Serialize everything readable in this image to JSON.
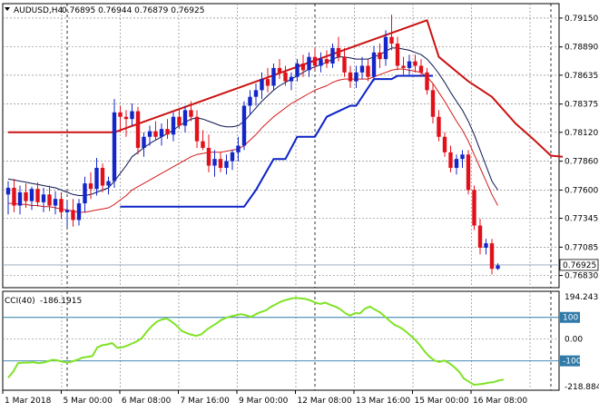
{
  "header": {
    "symbol": "AUDUSD,H4",
    "ohlc": "0.76895 0.76944 0.76879 0.76925"
  },
  "colors": {
    "bull": "#1426c8",
    "bear": "#e0111b",
    "ma_fast": "#0a1450",
    "ma_slow": "#d41a1a",
    "support": "#0a21c8",
    "resistance": "#cc1111",
    "cci": "#7fe324",
    "level": "#2f7aa8",
    "grid": "#8a8a8a"
  },
  "chart_data": [
    {
      "type": "candlestick",
      "title": "AUDUSD,H4",
      "ylim": [
        0.7672,
        0.7928
      ],
      "y_ticks": [
        "0.79150",
        "0.78890",
        "0.78635",
        "0.78375",
        "0.78120",
        "0.77860",
        "0.77600",
        "0.77345",
        "0.77085",
        "0.76830"
      ],
      "y_tick_values": [
        0.7915,
        0.7889,
        0.78635,
        0.78375,
        0.7812,
        0.7786,
        0.776,
        0.77345,
        0.77085,
        0.7683
      ],
      "current_price": "0.76925",
      "current_price_value": 0.76925,
      "x_labels": [
        "1 Mar 2018",
        "5 Mar 00:00",
        "6 Mar 08:00",
        "7 Mar 16:00",
        "9 Mar 00:00",
        "12 Mar 08:00",
        "13 Mar 16:00",
        "15 Mar 00:00",
        "16 Mar 08:00"
      ],
      "x_label_index": [
        0,
        10,
        21,
        32,
        43,
        54,
        65,
        76,
        87
      ],
      "separator_index": [
        10,
        52,
        92
      ],
      "candles": [
        [
          0.7756,
          0.7768,
          0.7738,
          0.7762
        ],
        [
          0.7762,
          0.777,
          0.774,
          0.7746
        ],
        [
          0.7746,
          0.7764,
          0.7738,
          0.7758
        ],
        [
          0.7758,
          0.7766,
          0.7744,
          0.775
        ],
        [
          0.775,
          0.7763,
          0.7742,
          0.7761
        ],
        [
          0.7761,
          0.7767,
          0.7745,
          0.7749
        ],
        [
          0.7749,
          0.7762,
          0.774,
          0.7756
        ],
        [
          0.7756,
          0.7764,
          0.7741,
          0.7746
        ],
        [
          0.7746,
          0.7759,
          0.7738,
          0.7752
        ],
        [
          0.7752,
          0.7758,
          0.7734,
          0.774
        ],
        [
          0.774,
          0.775,
          0.7726,
          0.7742
        ],
        [
          0.7742,
          0.7752,
          0.7727,
          0.7733
        ],
        [
          0.7733,
          0.7752,
          0.7728,
          0.7748
        ],
        [
          0.7748,
          0.7772,
          0.774,
          0.7766
        ],
        [
          0.7766,
          0.7776,
          0.7752,
          0.7761
        ],
        [
          0.7761,
          0.7789,
          0.7755,
          0.778
        ],
        [
          0.778,
          0.7784,
          0.7758,
          0.7764
        ],
        [
          0.7764,
          0.7772,
          0.7756,
          0.7768
        ],
        [
          0.7768,
          0.7842,
          0.7762,
          0.783
        ],
        [
          0.783,
          0.7836,
          0.7812,
          0.7826
        ],
        [
          0.7826,
          0.7832,
          0.7808,
          0.7824
        ],
        [
          0.7824,
          0.7838,
          0.7818,
          0.7831
        ],
        [
          0.7831,
          0.7835,
          0.7792,
          0.7798
        ],
        [
          0.7798,
          0.7812,
          0.779,
          0.7808
        ],
        [
          0.7808,
          0.7818,
          0.78,
          0.7813
        ],
        [
          0.7813,
          0.7822,
          0.7805,
          0.7808
        ],
        [
          0.7808,
          0.782,
          0.78,
          0.7815
        ],
        [
          0.7815,
          0.7824,
          0.7806,
          0.781
        ],
        [
          0.781,
          0.783,
          0.7804,
          0.7826
        ],
        [
          0.7826,
          0.7834,
          0.7815,
          0.7818
        ],
        [
          0.7818,
          0.7836,
          0.7812,
          0.7832
        ],
        [
          0.7832,
          0.784,
          0.7822,
          0.7826
        ],
        [
          0.7826,
          0.7832,
          0.7798,
          0.7804
        ],
        [
          0.7804,
          0.7814,
          0.7796,
          0.7798
        ],
        [
          0.7798,
          0.781,
          0.7776,
          0.7782
        ],
        [
          0.7782,
          0.7796,
          0.7772,
          0.7788
        ],
        [
          0.7788,
          0.7794,
          0.7776,
          0.778
        ],
        [
          0.778,
          0.7792,
          0.7774,
          0.7786
        ],
        [
          0.7786,
          0.7796,
          0.7778,
          0.7794
        ],
        [
          0.7794,
          0.7808,
          0.7786,
          0.78
        ],
        [
          0.78,
          0.784,
          0.7796,
          0.7836
        ],
        [
          0.7836,
          0.785,
          0.7828,
          0.7844
        ],
        [
          0.7844,
          0.7856,
          0.7836,
          0.785
        ],
        [
          0.785,
          0.7866,
          0.7842,
          0.786
        ],
        [
          0.786,
          0.787,
          0.7848,
          0.7854
        ],
        [
          0.7854,
          0.7874,
          0.785,
          0.787
        ],
        [
          0.787,
          0.7878,
          0.786,
          0.7866
        ],
        [
          0.7866,
          0.7872,
          0.7854,
          0.7858
        ],
        [
          0.7858,
          0.7866,
          0.785,
          0.7862
        ],
        [
          0.7862,
          0.7878,
          0.7858,
          0.7874
        ],
        [
          0.7874,
          0.7882,
          0.7862,
          0.7868
        ],
        [
          0.7868,
          0.7884,
          0.7862,
          0.788
        ],
        [
          0.788,
          0.7888,
          0.7868,
          0.7872
        ],
        [
          0.7872,
          0.7884,
          0.7866,
          0.7878
        ],
        [
          0.7878,
          0.7886,
          0.787,
          0.7874
        ],
        [
          0.7874,
          0.7892,
          0.787,
          0.7888
        ],
        [
          0.7888,
          0.7898,
          0.7876,
          0.788
        ],
        [
          0.788,
          0.7888,
          0.7862,
          0.7866
        ],
        [
          0.7866,
          0.7872,
          0.7852,
          0.7858
        ],
        [
          0.7858,
          0.7872,
          0.7852,
          0.7866
        ],
        [
          0.7866,
          0.788,
          0.786,
          0.7872
        ],
        [
          0.7872,
          0.7878,
          0.7858,
          0.7862
        ],
        [
          0.7862,
          0.789,
          0.7858,
          0.7884
        ],
        [
          0.7884,
          0.7892,
          0.787,
          0.7878
        ],
        [
          0.7878,
          0.7904,
          0.7872,
          0.7898
        ],
        [
          0.7898,
          0.7918,
          0.7886,
          0.7892
        ],
        [
          0.7892,
          0.7898,
          0.7868,
          0.7872
        ],
        [
          0.7872,
          0.788,
          0.7862,
          0.787
        ],
        [
          0.787,
          0.7882,
          0.7864,
          0.7876
        ],
        [
          0.7876,
          0.7882,
          0.7866,
          0.7872
        ],
        [
          0.7872,
          0.7878,
          0.7862,
          0.7866
        ],
        [
          0.7866,
          0.787,
          0.7846,
          0.785
        ],
        [
          0.785,
          0.7856,
          0.782,
          0.7826
        ],
        [
          0.7826,
          0.7832,
          0.7804,
          0.7808
        ],
        [
          0.7808,
          0.7812,
          0.779,
          0.7794
        ],
        [
          0.7794,
          0.78,
          0.7776,
          0.778
        ],
        [
          0.778,
          0.7792,
          0.7774,
          0.7788
        ],
        [
          0.7788,
          0.7796,
          0.778,
          0.7792
        ],
        [
          0.7792,
          0.7796,
          0.7756,
          0.776
        ],
        [
          0.776,
          0.7764,
          0.7724,
          0.7728
        ],
        [
          0.7728,
          0.7734,
          0.7702,
          0.7708
        ],
        [
          0.7708,
          0.7716,
          0.7702,
          0.7712
        ],
        [
          0.7712,
          0.7716,
          0.7684,
          0.7689
        ],
        [
          0.7689,
          0.7694,
          0.7688,
          0.7692
        ]
      ],
      "ma_fast": [
        0.777,
        0.7769,
        0.7768,
        0.7767,
        0.7766,
        0.7765,
        0.7764,
        0.7763,
        0.7762,
        0.776,
        0.7758,
        0.7756,
        0.7755,
        0.7755,
        0.7756,
        0.7758,
        0.776,
        0.7762,
        0.7768,
        0.7775,
        0.7782,
        0.779,
        0.7794,
        0.7798,
        0.7802,
        0.7805,
        0.7808,
        0.7811,
        0.7814,
        0.7818,
        0.7821,
        0.7824,
        0.7825,
        0.7824,
        0.7822,
        0.782,
        0.7818,
        0.7817,
        0.7817,
        0.7818,
        0.7822,
        0.7828,
        0.7834,
        0.784,
        0.7845,
        0.785,
        0.7854,
        0.7857,
        0.786,
        0.7863,
        0.7866,
        0.7869,
        0.7871,
        0.7873,
        0.7875,
        0.7878,
        0.788,
        0.788,
        0.7879,
        0.7878,
        0.7878,
        0.7878,
        0.788,
        0.7882,
        0.7885,
        0.7888,
        0.7888,
        0.7887,
        0.7886,
        0.7884,
        0.7882,
        0.7878,
        0.7872,
        0.7865,
        0.7857,
        0.7848,
        0.784,
        0.7832,
        0.7822,
        0.781,
        0.7796,
        0.7782,
        0.7768,
        0.776
      ],
      "ma_slow": [
        0.7748,
        0.7748,
        0.7747,
        0.7747,
        0.7746,
        0.7746,
        0.7745,
        0.7745,
        0.7744,
        0.7743,
        0.7742,
        0.7741,
        0.774,
        0.774,
        0.7741,
        0.7742,
        0.7743,
        0.7744,
        0.7747,
        0.7751,
        0.7755,
        0.776,
        0.7763,
        0.7766,
        0.7769,
        0.7772,
        0.7775,
        0.7778,
        0.7781,
        0.7784,
        0.7787,
        0.779,
        0.7792,
        0.7793,
        0.7794,
        0.7794,
        0.7794,
        0.7795,
        0.7796,
        0.7797,
        0.78,
        0.7805,
        0.781,
        0.7816,
        0.7821,
        0.7826,
        0.783,
        0.7834,
        0.7838,
        0.7841,
        0.7844,
        0.7847,
        0.785,
        0.7852,
        0.7854,
        0.7857,
        0.7859,
        0.786,
        0.786,
        0.786,
        0.786,
        0.786,
        0.7862,
        0.7864,
        0.7866,
        0.7868,
        0.7869,
        0.7869,
        0.7868,
        0.7867,
        0.7866,
        0.7862,
        0.7856,
        0.7848,
        0.784,
        0.7831,
        0.7822,
        0.7814,
        0.7804,
        0.7792,
        0.778,
        0.7768,
        0.7756,
        0.7746
      ],
      "resistance_line": [
        [
          0,
          0.7812
        ],
        [
          18,
          0.7812
        ],
        [
          71,
          0.7913
        ],
        [
          73,
          0.788
        ],
        [
          78,
          0.7858
        ],
        [
          82,
          0.7844
        ],
        [
          86,
          0.782
        ],
        [
          89,
          0.7806
        ],
        [
          92,
          0.7791
        ],
        [
          94,
          0.779
        ]
      ],
      "support_line": [
        [
          19,
          0.7745
        ],
        [
          40,
          0.7745
        ],
        [
          42,
          0.776
        ],
        [
          45,
          0.7788
        ],
        [
          47,
          0.7788
        ],
        [
          49,
          0.7808
        ],
        [
          52,
          0.7808
        ],
        [
          54,
          0.7826
        ],
        [
          58,
          0.7836
        ],
        [
          59,
          0.7836
        ],
        [
          62,
          0.786
        ],
        [
          65,
          0.786
        ],
        [
          66,
          0.7863
        ],
        [
          72,
          0.7863
        ]
      ]
    },
    {
      "type": "line",
      "title": "CCI(40)",
      "value_text": "-186.1915",
      "ylim": [
        -235,
        220
      ],
      "y_ticks": [
        "194.2435",
        "100",
        "0.00",
        "-100",
        "-218.884"
      ],
      "y_tick_values": [
        194.2435,
        100,
        0,
        -100,
        -218.884
      ],
      "levels": [
        100,
        -100
      ],
      "values": [
        -178,
        -150,
        -110,
        -108,
        -108,
        -106,
        -110,
        -108,
        -102,
        -95,
        -98,
        -104,
        -108,
        -102,
        -95,
        -85,
        -82,
        -78,
        -38,
        -28,
        -24,
        -18,
        -40,
        -38,
        -30,
        -20,
        -10,
        5,
        35,
        60,
        80,
        90,
        95,
        80,
        62,
        38,
        28,
        20,
        15,
        22,
        42,
        58,
        72,
        88,
        98,
        105,
        110,
        115,
        110,
        102,
        115,
        125,
        132,
        148,
        160,
        172,
        180,
        186,
        190,
        188,
        185,
        178,
        168,
        162,
        168,
        158,
        150,
        138,
        120,
        108,
        120,
        118,
        140,
        150,
        136,
        124,
        104,
        84,
        65,
        55,
        40,
        20,
        0,
        -25,
        -55,
        -80,
        -98,
        -105,
        -98,
        -110,
        -128,
        -150,
        -182,
        -196,
        -210,
        -208,
        -205,
        -200,
        -198,
        -190,
        -186
      ]
    }
  ]
}
